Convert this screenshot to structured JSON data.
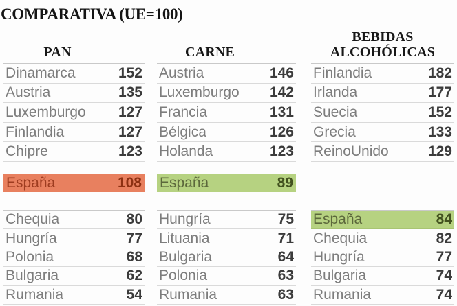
{
  "title": "COMPARATIVA (UE=100)",
  "colors": {
    "orange_highlight": "#e8805f",
    "green_highlight": "#b6d281",
    "country_text": "#7d7d7d",
    "value_text": "#3b3b3b",
    "separator_line": "#dadada"
  },
  "columns": [
    {
      "id": "pan",
      "header_lines": [
        "PAN"
      ],
      "top": [
        {
          "country": "Dinamarca",
          "value": "152"
        },
        {
          "country": "Austria",
          "value": "135"
        },
        {
          "country": "Luxemburgo",
          "value": "127"
        },
        {
          "country": "Finlandia",
          "value": "127"
        },
        {
          "country": "Chipre",
          "value": "123"
        }
      ],
      "mid": {
        "country": "España",
        "value": "108",
        "highlight": "orange"
      },
      "bottom": [
        {
          "country": "Chequia",
          "value": "80"
        },
        {
          "country": "Hungría",
          "value": "77"
        },
        {
          "country": "Polonia",
          "value": "68"
        },
        {
          "country": "Bulgaria",
          "value": "62"
        },
        {
          "country": "Rumania",
          "value": "54"
        }
      ]
    },
    {
      "id": "carne",
      "header_lines": [
        "CARNE"
      ],
      "top": [
        {
          "country": "Austria",
          "value": "146"
        },
        {
          "country": "Luxemburgo",
          "value": "142"
        },
        {
          "country": "Francia",
          "value": "131"
        },
        {
          "country": "Bélgica",
          "value": "126"
        },
        {
          "country": "Holanda",
          "value": "123"
        }
      ],
      "mid": {
        "country": "España",
        "value": "89",
        "highlight": "green"
      },
      "bottom": [
        {
          "country": "Hungría",
          "value": "75"
        },
        {
          "country": "Lituania",
          "value": "71"
        },
        {
          "country": "Bulgaria",
          "value": "64"
        },
        {
          "country": "Polonia",
          "value": "63"
        },
        {
          "country": "Rumania",
          "value": "63"
        }
      ]
    },
    {
      "id": "bebidas",
      "header_lines": [
        "BEBIDAS",
        "ALCOHÓLICAS"
      ],
      "top": [
        {
          "country": "Finlandia",
          "value": "182"
        },
        {
          "country": "Irlanda",
          "value": "177"
        },
        {
          "country": "Suecia",
          "value": "152"
        },
        {
          "country": "Grecia",
          "value": "133"
        },
        {
          "country": "ReinoUnido",
          "value": "129"
        }
      ],
      "mid": null,
      "bottom": [
        {
          "country": "España",
          "value": "84",
          "highlight": "green"
        },
        {
          "country": "Chequia",
          "value": "82"
        },
        {
          "country": "Hungría",
          "value": "77"
        },
        {
          "country": "Bulgaria",
          "value": "74"
        },
        {
          "country": "Rumania",
          "value": "74"
        }
      ]
    }
  ],
  "chart_data": {
    "type": "table",
    "title": "COMPARATIVA (UE=100)",
    "tables": [
      {
        "name": "PAN",
        "categories": [
          "Dinamarca",
          "Austria",
          "Luxemburgo",
          "Finlandia",
          "Chipre",
          "España",
          "Chequia",
          "Hungría",
          "Polonia",
          "Bulgaria",
          "Rumania"
        ],
        "values": [
          152,
          135,
          127,
          127,
          123,
          108,
          80,
          77,
          68,
          62,
          54
        ],
        "highlight": {
          "category": "España",
          "value": 108,
          "color": "#e8805f"
        }
      },
      {
        "name": "CARNE",
        "categories": [
          "Austria",
          "Luxemburgo",
          "Francia",
          "Bélgica",
          "Holanda",
          "España",
          "Hungría",
          "Lituania",
          "Bulgaria",
          "Polonia",
          "Rumania"
        ],
        "values": [
          146,
          142,
          131,
          126,
          123,
          89,
          75,
          71,
          64,
          63,
          63
        ],
        "highlight": {
          "category": "España",
          "value": 89,
          "color": "#b6d281"
        }
      },
      {
        "name": "BEBIDAS ALCOHÓLICAS",
        "categories": [
          "Finlandia",
          "Irlanda",
          "Suecia",
          "Grecia",
          "ReinoUnido",
          "España",
          "Chequia",
          "Hungría",
          "Bulgaria",
          "Rumania"
        ],
        "values": [
          182,
          177,
          152,
          133,
          129,
          84,
          82,
          77,
          74,
          74
        ],
        "highlight": {
          "category": "España",
          "value": 84,
          "color": "#b6d281"
        }
      }
    ]
  }
}
